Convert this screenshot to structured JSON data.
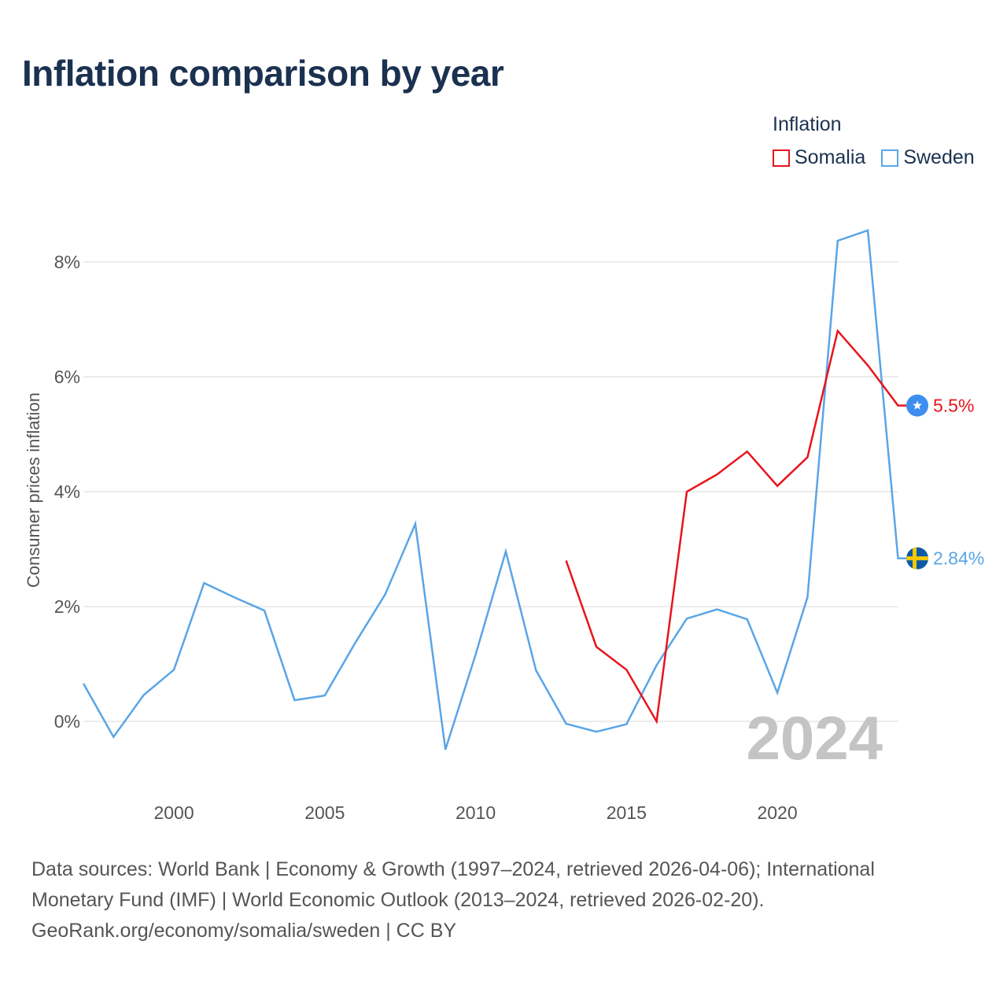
{
  "title": "Inflation comparison by year",
  "legend": {
    "title": "Inflation",
    "items": [
      {
        "name": "Somalia",
        "color": "#e8141b"
      },
      {
        "name": "Sweden",
        "color": "#5aa5e6"
      }
    ]
  },
  "chart_data": {
    "type": "line",
    "title": "Inflation comparison by year",
    "xlabel": "",
    "ylabel": "Consumer prices inflation",
    "xlim": [
      1997,
      2024
    ],
    "ylim": [
      -1.5,
      9
    ],
    "y_ticks": [
      0,
      2,
      4,
      6,
      8
    ],
    "y_tick_labels": [
      "0%",
      "2%",
      "4%",
      "6%",
      "8%"
    ],
    "x_ticks": [
      2000,
      2005,
      2010,
      2015,
      2020
    ],
    "x_tick_labels": [
      "2000",
      "2005",
      "2010",
      "2015",
      "2020"
    ],
    "grid": true,
    "current_year": "2024",
    "series": [
      {
        "name": "Sweden",
        "color": "#5aa5e6",
        "end_label": "2.84%",
        "x": [
          1997,
          1998,
          1999,
          2000,
          2001,
          2002,
          2003,
          2004,
          2005,
          2006,
          2007,
          2008,
          2009,
          2010,
          2011,
          2012,
          2013,
          2014,
          2015,
          2016,
          2017,
          2018,
          2019,
          2020,
          2021,
          2022,
          2023,
          2024
        ],
        "values": [
          0.66,
          -0.27,
          0.46,
          0.9,
          2.41,
          2.16,
          1.93,
          0.37,
          0.45,
          1.36,
          2.21,
          3.44,
          -0.49,
          1.16,
          2.96,
          0.89,
          -0.04,
          -0.18,
          -0.05,
          0.98,
          1.79,
          1.95,
          1.78,
          0.5,
          2.16,
          8.37,
          8.55,
          2.84
        ]
      },
      {
        "name": "Somalia",
        "color": "#e8141b",
        "end_label": "5.5%",
        "x": [
          2013,
          2014,
          2015,
          2016,
          2017,
          2018,
          2019,
          2020,
          2021,
          2022,
          2023,
          2024
        ],
        "values": [
          2.8,
          1.3,
          0.9,
          0.0,
          4.0,
          4.3,
          4.7,
          4.1,
          4.6,
          6.8,
          6.2,
          5.5
        ]
      }
    ]
  },
  "footer": {
    "line1": "Data sources: World Bank | Economy & Growth (1997–2024, retrieved 2026-04-06); International",
    "line2": "Monetary Fund (IMF) | World Economic Outlook (2013–2024, retrieved 2026-02-20).",
    "line3": "GeoRank.org/economy/somalia/sweden | CC BY"
  }
}
